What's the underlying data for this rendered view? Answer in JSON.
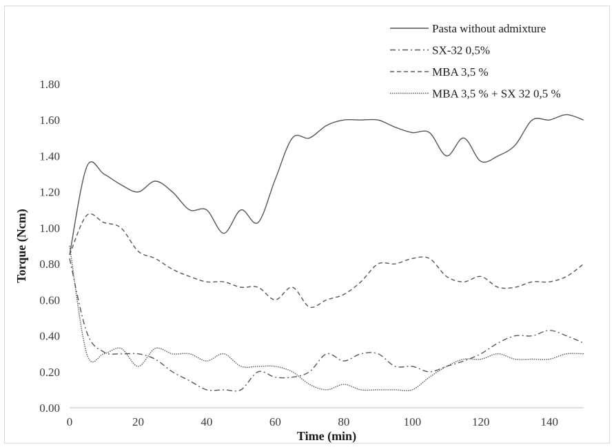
{
  "chart_data": {
    "type": "line",
    "xlabel": "Time (min)",
    "ylabel": "Torque (Ncm)",
    "xlim": [
      0,
      150
    ],
    "ylim": [
      0,
      1.8
    ],
    "x_ticks": [
      "0",
      "20",
      "40",
      "60",
      "80",
      "100",
      "120",
      "140"
    ],
    "y_ticks": [
      "0.00",
      "0.20",
      "0.40",
      "0.60",
      "0.80",
      "1.00",
      "1.20",
      "1.40",
      "1.60",
      "1.80"
    ],
    "grid": false,
    "legend_position": "top-right",
    "series": [
      {
        "name": "Pasta without admixture",
        "style": "solid",
        "color": "#555555",
        "x": [
          0,
          5,
          10,
          15,
          20,
          25,
          30,
          35,
          40,
          45,
          50,
          55,
          60,
          65,
          70,
          75,
          80,
          85,
          90,
          95,
          100,
          105,
          110,
          115,
          120,
          125,
          130,
          135,
          140,
          145,
          150
        ],
        "y": [
          0.85,
          1.34,
          1.3,
          1.24,
          1.2,
          1.26,
          1.2,
          1.1,
          1.1,
          0.97,
          1.1,
          1.03,
          1.27,
          1.5,
          1.5,
          1.57,
          1.6,
          1.6,
          1.6,
          1.56,
          1.53,
          1.53,
          1.4,
          1.5,
          1.37,
          1.4,
          1.46,
          1.6,
          1.6,
          1.63,
          1.6
        ]
      },
      {
        "name": "SX-32 0,5%",
        "style": "dashdot",
        "color": "#555555",
        "x": [
          0,
          5,
          10,
          15,
          20,
          25,
          30,
          35,
          40,
          45,
          50,
          55,
          60,
          65,
          70,
          75,
          80,
          85,
          90,
          95,
          100,
          105,
          110,
          115,
          120,
          125,
          130,
          135,
          140,
          145,
          150
        ],
        "y": [
          0.83,
          0.42,
          0.31,
          0.3,
          0.3,
          0.27,
          0.2,
          0.15,
          0.1,
          0.1,
          0.1,
          0.2,
          0.17,
          0.17,
          0.2,
          0.3,
          0.26,
          0.3,
          0.3,
          0.23,
          0.23,
          0.2,
          0.23,
          0.26,
          0.3,
          0.36,
          0.4,
          0.4,
          0.43,
          0.4,
          0.36
        ]
      },
      {
        "name": "MBA 3,5 %",
        "style": "dashed",
        "color": "#555555",
        "x": [
          0,
          5,
          10,
          15,
          20,
          25,
          30,
          35,
          40,
          45,
          50,
          55,
          60,
          65,
          70,
          75,
          80,
          85,
          90,
          95,
          100,
          105,
          110,
          115,
          120,
          125,
          130,
          135,
          140,
          145,
          150
        ],
        "y": [
          0.85,
          1.07,
          1.03,
          1.0,
          0.87,
          0.83,
          0.77,
          0.73,
          0.7,
          0.7,
          0.67,
          0.67,
          0.6,
          0.67,
          0.56,
          0.6,
          0.63,
          0.7,
          0.8,
          0.8,
          0.83,
          0.83,
          0.73,
          0.7,
          0.73,
          0.67,
          0.67,
          0.7,
          0.7,
          0.73,
          0.8
        ]
      },
      {
        "name": "MBA 3,5 % + SX 32 0,5 %",
        "style": "dotted",
        "color": "#555555",
        "x": [
          0,
          5,
          10,
          15,
          20,
          25,
          30,
          35,
          40,
          45,
          50,
          55,
          60,
          65,
          70,
          75,
          80,
          85,
          90,
          95,
          100,
          105,
          110,
          115,
          120,
          125,
          130,
          135,
          140,
          145,
          150
        ],
        "y": [
          0.9,
          0.3,
          0.3,
          0.33,
          0.23,
          0.33,
          0.3,
          0.3,
          0.26,
          0.3,
          0.23,
          0.23,
          0.23,
          0.2,
          0.13,
          0.1,
          0.13,
          0.1,
          0.1,
          0.1,
          0.1,
          0.17,
          0.23,
          0.27,
          0.27,
          0.3,
          0.27,
          0.27,
          0.27,
          0.3,
          0.3
        ]
      }
    ]
  }
}
